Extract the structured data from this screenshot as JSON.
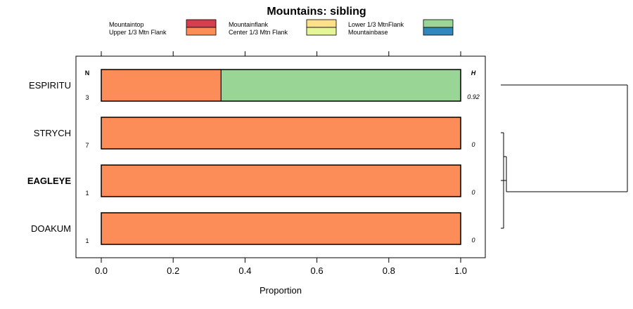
{
  "chart_data": {
    "type": "bar",
    "orientation": "horizontal",
    "stacked": true,
    "title": "Mountains: sibling",
    "xlabel": "Proportion",
    "xlim": [
      -0.07,
      1.07
    ],
    "x_ticks": [
      "0.0",
      "0.2",
      "0.4",
      "0.6",
      "0.8",
      "1.0"
    ],
    "x_tick_values": [
      0,
      0.2,
      0.4,
      0.6,
      0.8,
      1.0
    ],
    "n_header": "N",
    "h_header": "H",
    "legend": [
      {
        "name": "Mountaintop",
        "color": "#d53e4f"
      },
      {
        "name": "Upper 1/3 Mtn Flank",
        "color": "#fc8d59"
      },
      {
        "name": "Mountainflank",
        "color": "#fee08b"
      },
      {
        "name": "Center 1/3 Mtn Flank",
        "color": "#e6f598"
      },
      {
        "name": "Lower 1/3 MtnFlank",
        "color": "#99d594"
      },
      {
        "name": "Mountainbase",
        "color": "#3288bd"
      }
    ],
    "categories": [
      {
        "label": "ESPIRITU",
        "bold": false,
        "n": "3",
        "h": "0.92",
        "segments": [
          {
            "series": "Upper 1/3 Mtn Flank",
            "value": 0.3333
          },
          {
            "series": "Lower 1/3 MtnFlank",
            "value": 0.6667
          }
        ]
      },
      {
        "label": "STRYCH",
        "bold": false,
        "n": "7",
        "h": "0",
        "segments": [
          {
            "series": "Upper 1/3 Mtn Flank",
            "value": 1.0
          }
        ]
      },
      {
        "label": "EAGLEYE",
        "bold": true,
        "n": "1",
        "h": "0",
        "segments": [
          {
            "series": "Upper 1/3 Mtn Flank",
            "value": 1.0
          }
        ]
      },
      {
        "label": "DOAKUM",
        "bold": false,
        "n": "1",
        "h": "0",
        "segments": [
          {
            "series": "Upper 1/3 Mtn Flank",
            "value": 1.0
          }
        ]
      }
    ]
  }
}
